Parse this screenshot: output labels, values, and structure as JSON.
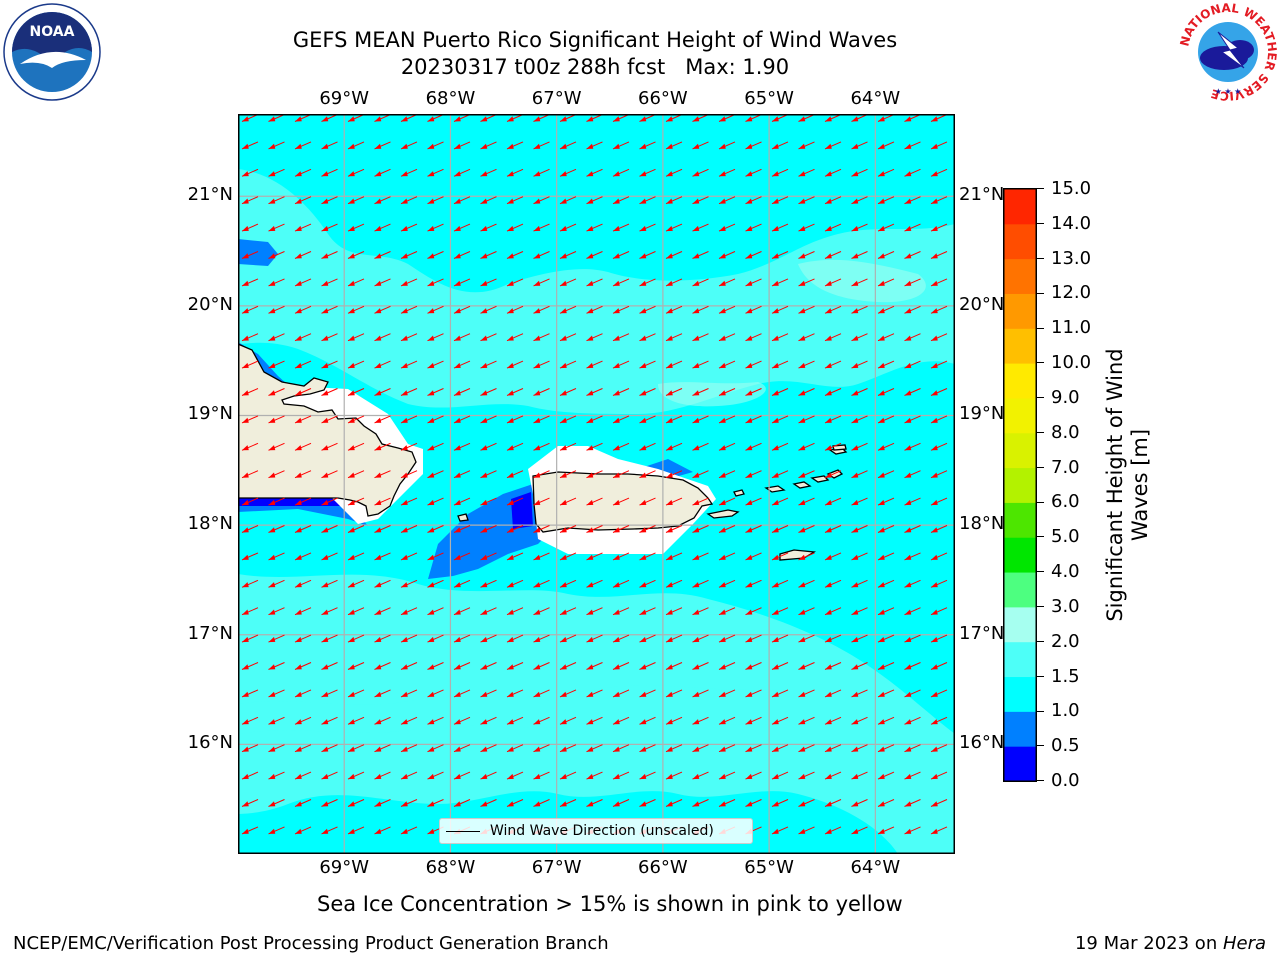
{
  "title": {
    "line1": "GEFS MEAN Puerto Rico Significant Height of Wind Waves",
    "line2": "20230317 t00z 288h fcst   Max: 1.90"
  },
  "map": {
    "extent": {
      "lon_min": -70.0,
      "lon_max": -63.25,
      "lat_min": 15.0,
      "lat_max": 21.75
    },
    "lon_ticks": [
      {
        "label": "69°W",
        "lon": -69.0
      },
      {
        "label": "68°W",
        "lon": -68.0
      },
      {
        "label": "67°W",
        "lon": -67.0
      },
      {
        "label": "66°W",
        "lon": -66.0
      },
      {
        "label": "65°W",
        "lon": -65.0
      },
      {
        "label": "64°W",
        "lon": -64.0
      }
    ],
    "lat_ticks": [
      {
        "label": "21°N",
        "lat": 21.0
      },
      {
        "label": "20°N",
        "lat": 20.0
      },
      {
        "label": "19°N",
        "lat": 19.0
      },
      {
        "label": "18°N",
        "lat": 18.0
      },
      {
        "label": "17°N",
        "lat": 17.0
      },
      {
        "label": "16°N",
        "lat": 16.0
      }
    ],
    "gridlines": true,
    "background_wave_height_range_m": "1.0–2.0",
    "arrow_direction": "toward southwest (easterly trade wind waves)",
    "land_color": "#f0eedc",
    "legend": {
      "label": "Wind Wave Direction (unscaled)",
      "placement": "bottom-center"
    }
  },
  "colorbar": {
    "label": "Significant Height of Wind Waves [m]",
    "min": 0.0,
    "max": 15.0,
    "tick_labels": [
      "15.0",
      "14.0",
      "13.0",
      "12.0",
      "11.0",
      "10.0",
      "9.0",
      "8.0",
      "7.0",
      "6.0",
      "5.0",
      "4.0",
      "3.0",
      "2.0",
      "1.5",
      "1.0",
      "0.5",
      "0.0"
    ],
    "bands": [
      {
        "from": 0.0,
        "to": 0.5,
        "color": "#0000ff"
      },
      {
        "from": 0.5,
        "to": 1.0,
        "color": "#0080ff"
      },
      {
        "from": 1.0,
        "to": 1.5,
        "color": "#00ffff"
      },
      {
        "from": 1.5,
        "to": 2.0,
        "color": "#4dfff8"
      },
      {
        "from": 2.0,
        "to": 3.0,
        "color": "#a6fff0"
      },
      {
        "from": 3.0,
        "to": 4.0,
        "color": "#4dff80"
      },
      {
        "from": 4.0,
        "to": 5.0,
        "color": "#00e600"
      },
      {
        "from": 5.0,
        "to": 6.0,
        "color": "#4de600"
      },
      {
        "from": 6.0,
        "to": 7.0,
        "color": "#b3f200"
      },
      {
        "from": 7.0,
        "to": 8.0,
        "color": "#d9f200"
      },
      {
        "from": 8.0,
        "to": 9.0,
        "color": "#f2f200"
      },
      {
        "from": 9.0,
        "to": 10.0,
        "color": "#ffea00"
      },
      {
        "from": 10.0,
        "to": 11.0,
        "color": "#ffbf00"
      },
      {
        "from": 11.0,
        "to": 12.0,
        "color": "#ff9900"
      },
      {
        "from": 12.0,
        "to": 13.0,
        "color": "#ff7300"
      },
      {
        "from": 13.0,
        "to": 14.0,
        "color": "#ff4d00"
      },
      {
        "from": 14.0,
        "to": 15.0,
        "color": "#ff2600"
      }
    ]
  },
  "subcaption": "Sea Ice Concentration > 15% is shown in pink to yellow",
  "footer": {
    "left": "NCEP/EMC/Verification Post Processing Product Generation Branch",
    "right_prefix": "19 Mar 2023 on ",
    "right_host": "Hera"
  },
  "logos": {
    "noaa_text": "NOAA",
    "nws_ring_text": "NATIONAL WEATHER SERVICE"
  },
  "colors": {
    "arrow": "#ff0000",
    "grid": "#b0b0b0",
    "coast": "#000000"
  }
}
